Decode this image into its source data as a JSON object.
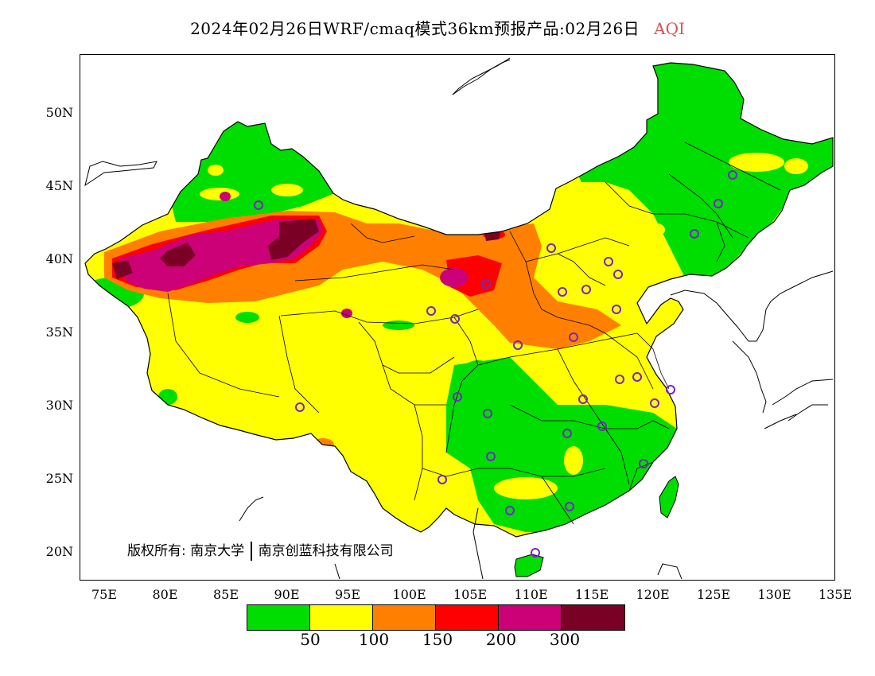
{
  "title": {
    "main": "2024年02月26日WRF/cmaq模式36km预报产品:02月26日",
    "variable": "AQI",
    "variable_color": "#e05050"
  },
  "axes": {
    "y_labels": [
      "50N",
      "45N",
      "40N",
      "35N",
      "30N",
      "25N",
      "20N"
    ],
    "x_labels": [
      "75E",
      "80E",
      "85E",
      "90E",
      "95E",
      "100E",
      "105E",
      "110E",
      "115E",
      "120E",
      "125E",
      "130E",
      "135E"
    ]
  },
  "legend": {
    "colors": [
      "#00dd00",
      "#ffff00",
      "#ff8000",
      "#ff0000",
      "#cc0077",
      "#7a0025"
    ],
    "ticks": [
      "50",
      "100",
      "150",
      "200",
      "300"
    ]
  },
  "copyright": {
    "prefix": "版权所有:",
    "org1": "南京大学",
    "org2": "南京创蓝科技有限公司"
  },
  "map_colors": {
    "green": "#00dd00",
    "yellow": "#ffff00",
    "orange": "#ff8000",
    "red": "#ff0000",
    "purple": "#cc0077",
    "dark": "#7a0025",
    "station": "#7a22cc"
  }
}
